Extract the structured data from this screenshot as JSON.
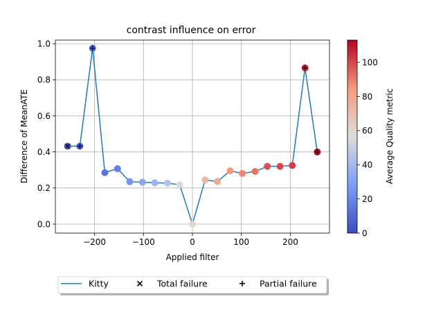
{
  "chart_data": {
    "type": "line",
    "title": "contrast influence on error",
    "xlabel": "Applied filter",
    "ylabel": "Difference of MeanATE",
    "xlim": [
      -280,
      280
    ],
    "ylim": [
      -0.05,
      1.02
    ],
    "xticks": [
      -200,
      -100,
      0,
      100,
      200
    ],
    "xtick_labels": [
      "−200",
      "−100",
      "0",
      "100",
      "200"
    ],
    "yticks": [
      0.0,
      0.2,
      0.4,
      0.6,
      0.8,
      1.0
    ],
    "ytick_labels": [
      "0.0",
      "0.2",
      "0.4",
      "0.6",
      "0.8",
      "1.0"
    ],
    "grid": true,
    "series": [
      {
        "name": "Kitty",
        "color": "#1f77b4",
        "x": [
          -255,
          -230,
          -204,
          -179,
          -153,
          -128,
          -102,
          -77,
          -51,
          -26,
          0,
          26,
          51,
          77,
          102,
          128,
          153,
          179,
          204,
          230,
          255
        ],
        "y": [
          0.432,
          0.432,
          0.975,
          0.285,
          0.307,
          0.235,
          0.232,
          0.229,
          0.227,
          0.218,
          0.0,
          0.245,
          0.236,
          0.295,
          0.281,
          0.292,
          0.32,
          0.32,
          0.325,
          0.866,
          0.4
        ],
        "quality": [
          3,
          5,
          8,
          14,
          18,
          25,
          32,
          38,
          44,
          55,
          60,
          72,
          78,
          85,
          88,
          92,
          98,
          100,
          102,
          108,
          112
        ]
      }
    ],
    "total_failure_x": [
      -255
    ],
    "partial_failure_x": [
      -230,
      -204,
      230,
      255
    ],
    "colorbar": {
      "label": "Average Quality metric",
      "min": 0,
      "max": 113,
      "ticks": [
        0,
        20,
        40,
        60,
        80,
        100
      ],
      "tick_labels": [
        "0",
        "20",
        "40",
        "60",
        "80",
        "100"
      ],
      "colormap": "coolwarm"
    },
    "legend": {
      "placement": "bottom",
      "entries": [
        "Kitty",
        "Total failure",
        "Partial failure"
      ]
    }
  }
}
